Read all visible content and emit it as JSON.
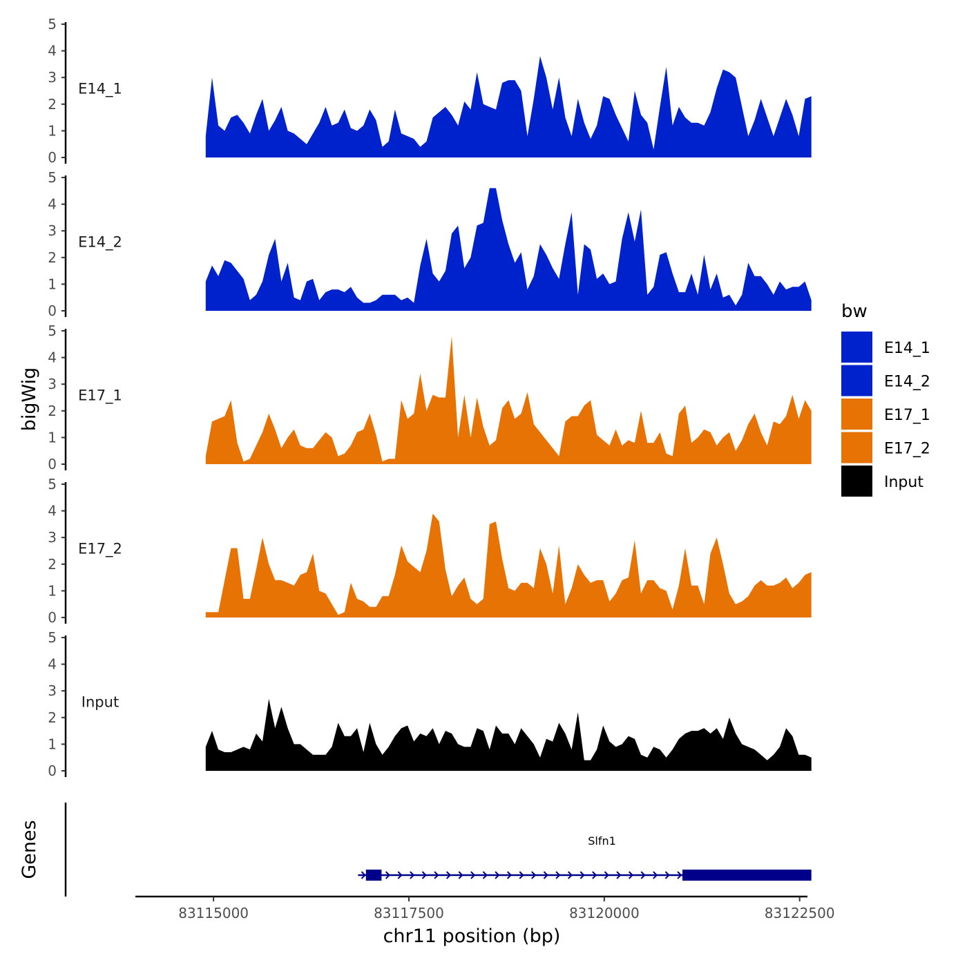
{
  "chart_data": {
    "type": "area",
    "ylabel": "bigWig",
    "xlabel": "chr11 position (bp)",
    "xlim": [
      83114000,
      83122600
    ],
    "ylim": [
      0,
      5
    ],
    "yticks": [
      0,
      1,
      2,
      3,
      4,
      5
    ],
    "xticks": [
      83115000,
      83117500,
      83120000,
      83122500
    ],
    "x_tick_labels": [
      "83115000",
      "83117500",
      "83120000",
      "83122500"
    ],
    "track_x_range": [
      83114900,
      83122650
    ],
    "legend": {
      "title": "bw",
      "placement": "right",
      "items": [
        {
          "label": "E14_1",
          "color": "#0022CC"
        },
        {
          "label": "E14_2",
          "color": "#0022CC"
        },
        {
          "label": "E17_1",
          "color": "#E87305"
        },
        {
          "label": "E17_2",
          "color": "#E87305"
        },
        {
          "label": "Input",
          "color": "#000000"
        }
      ]
    },
    "series": [
      {
        "name": "E14_1",
        "color": "#0022CC",
        "values": [
          0.8,
          3.0,
          1.2,
          1.0,
          1.5,
          1.6,
          1.3,
          0.9,
          1.6,
          2.2,
          1.0,
          1.4,
          1.9,
          1.0,
          0.9,
          0.7,
          0.5,
          0.9,
          1.3,
          1.9,
          1.2,
          1.3,
          1.8,
          1.1,
          1.0,
          1.2,
          1.8,
          1.4,
          0.4,
          0.6,
          1.8,
          0.9,
          0.8,
          0.7,
          0.4,
          0.6,
          1.5,
          1.7,
          1.9,
          1.6,
          1.2,
          2.1,
          1.8,
          3.2,
          2.0,
          1.9,
          1.8,
          2.8,
          2.9,
          2.9,
          2.5,
          0.8,
          2.2,
          3.8,
          3.0,
          1.8,
          3.0,
          1.5,
          0.8,
          2.2,
          1.3,
          0.7,
          1.2,
          2.3,
          2.2,
          1.6,
          1.1,
          0.6,
          2.5,
          1.6,
          1.3,
          0.3,
          1.9,
          3.4,
          1.2,
          1.9,
          1.5,
          1.3,
          1.3,
          1.2,
          1.7,
          2.6,
          3.3,
          3.2,
          3.0,
          1.9,
          0.8,
          1.4,
          2.2,
          1.5,
          0.8,
          1.5,
          2.2,
          1.6,
          0.8,
          2.2,
          2.3
        ]
      },
      {
        "name": "E14_2",
        "color": "#0022CC",
        "values": [
          1.1,
          1.7,
          1.3,
          1.9,
          1.8,
          1.5,
          1.2,
          0.4,
          0.6,
          1.1,
          2.1,
          2.7,
          1.1,
          1.8,
          0.5,
          0.4,
          1.1,
          1.2,
          0.4,
          0.7,
          0.8,
          0.8,
          0.7,
          0.9,
          0.5,
          0.3,
          0.3,
          0.4,
          0.6,
          0.6,
          0.6,
          0.4,
          0.5,
          0.3,
          1.7,
          2.7,
          1.4,
          1.1,
          1.5,
          2.9,
          3.2,
          1.6,
          2.0,
          3.2,
          3.3,
          4.6,
          4.6,
          3.4,
          2.5,
          1.8,
          2.2,
          0.8,
          1.3,
          2.5,
          2.1,
          1.6,
          1.2,
          2.5,
          3.7,
          0.6,
          2.5,
          2.3,
          1.2,
          1.4,
          1.0,
          1.1,
          2.7,
          3.7,
          2.6,
          3.8,
          0.6,
          0.9,
          2.1,
          2.2,
          1.4,
          0.7,
          0.7,
          1.4,
          0.6,
          2.1,
          0.8,
          1.4,
          0.5,
          0.6,
          0.2,
          0.6,
          1.8,
          1.3,
          1.3,
          1.0,
          0.6,
          1.1,
          0.8,
          0.9,
          0.9,
          1.1,
          0.4
        ]
      },
      {
        "name": "E17_1",
        "color": "#E87305",
        "values": [
          0.3,
          1.6,
          1.7,
          1.8,
          2.4,
          0.8,
          0.1,
          0.2,
          0.7,
          1.2,
          1.9,
          1.3,
          0.6,
          1.0,
          1.3,
          0.7,
          0.6,
          0.6,
          0.9,
          1.2,
          1.0,
          0.3,
          0.4,
          0.7,
          1.2,
          1.3,
          1.9,
          1.1,
          0.1,
          0.2,
          0.2,
          2.4,
          1.7,
          1.9,
          3.4,
          2.0,
          2.6,
          2.5,
          2.5,
          4.8,
          1.0,
          2.6,
          1.0,
          2.5,
          1.4,
          0.7,
          0.9,
          2.1,
          2.4,
          1.7,
          1.9,
          2.7,
          1.5,
          1.2,
          0.9,
          0.6,
          0.3,
          1.6,
          1.8,
          1.8,
          2.2,
          2.4,
          1.1,
          0.9,
          0.7,
          1.3,
          0.7,
          0.9,
          0.8,
          2.0,
          0.8,
          0.8,
          1.2,
          0.4,
          0.3,
          1.9,
          2.2,
          0.8,
          1.0,
          1.3,
          1.2,
          0.7,
          1.0,
          1.2,
          0.5,
          0.9,
          1.5,
          1.9,
          1.2,
          0.7,
          1.6,
          1.5,
          1.8,
          2.6,
          1.7,
          2.4,
          2.0
        ]
      },
      {
        "name": "E17_2",
        "color": "#E87305",
        "values": [
          0.2,
          0.2,
          0.2,
          1.4,
          2.6,
          2.6,
          0.7,
          0.7,
          1.8,
          3.0,
          2.0,
          1.4,
          1.4,
          1.3,
          1.2,
          1.6,
          1.7,
          2.4,
          1.0,
          0.9,
          0.5,
          0.1,
          0.2,
          1.3,
          0.7,
          0.6,
          0.4,
          0.4,
          0.8,
          0.8,
          1.6,
          2.7,
          2.1,
          1.9,
          1.7,
          2.5,
          3.9,
          3.6,
          1.8,
          0.8,
          1.2,
          1.5,
          0.7,
          0.5,
          0.7,
          3.5,
          3.6,
          2.2,
          1.1,
          1.0,
          1.3,
          1.3,
          1.1,
          2.6,
          2.0,
          0.9,
          2.7,
          0.5,
          1.1,
          2.0,
          1.6,
          1.3,
          1.4,
          1.4,
          0.6,
          0.9,
          1.4,
          1.5,
          2.9,
          0.9,
          1.4,
          1.4,
          1.1,
          1.0,
          0.3,
          1.2,
          2.6,
          1.2,
          1.2,
          0.5,
          2.4,
          3.0,
          2.0,
          0.9,
          0.5,
          0.6,
          0.8,
          1.2,
          1.4,
          1.2,
          1.2,
          1.3,
          1.5,
          1.1,
          1.3,
          1.6,
          1.7
        ]
      },
      {
        "name": "Input",
        "color": "#000000",
        "values": [
          0.9,
          1.5,
          0.8,
          0.7,
          0.7,
          0.8,
          0.9,
          0.8,
          1.4,
          1.1,
          2.7,
          1.6,
          2.4,
          1.6,
          1.0,
          1.0,
          0.8,
          0.6,
          0.6,
          0.6,
          0.9,
          1.8,
          1.3,
          1.3,
          1.6,
          0.7,
          1.8,
          1.0,
          0.6,
          0.9,
          1.3,
          1.6,
          1.7,
          1.1,
          1.4,
          1.3,
          1.6,
          1.0,
          1.5,
          1.4,
          1.0,
          0.9,
          0.9,
          1.6,
          1.5,
          0.8,
          1.7,
          1.4,
          1.4,
          1.0,
          1.6,
          1.3,
          1.0,
          0.5,
          1.2,
          1.1,
          1.8,
          1.4,
          0.8,
          2.2,
          0.4,
          0.4,
          0.8,
          1.7,
          1.1,
          0.9,
          1.0,
          1.3,
          1.2,
          0.6,
          0.5,
          0.9,
          0.8,
          0.5,
          0.8,
          1.2,
          1.4,
          1.5,
          1.5,
          1.6,
          1.4,
          1.6,
          1.2,
          2.0,
          1.4,
          1.0,
          0.9,
          0.8,
          0.6,
          0.4,
          0.6,
          0.9,
          1.6,
          1.3,
          0.6,
          0.6,
          0.5
        ]
      }
    ],
    "gene": {
      "name": "Slfn1",
      "color": "#00008B",
      "start": 83116850,
      "end": 83122650,
      "strand": "+",
      "exons": [
        [
          83116950,
          83117150
        ],
        [
          83121000,
          83122650
        ]
      ],
      "track_label": "Genes"
    }
  }
}
